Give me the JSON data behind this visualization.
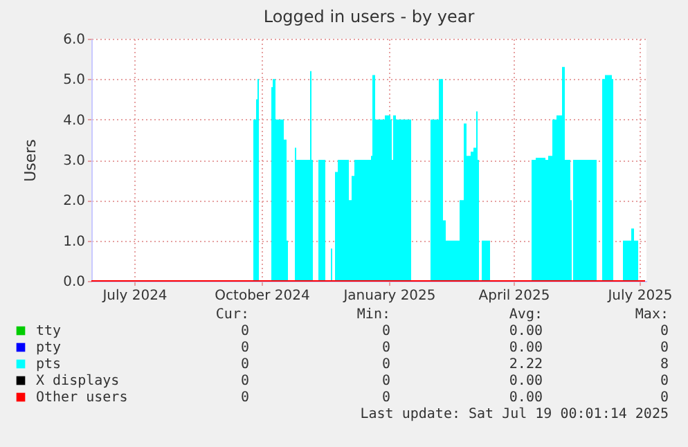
{
  "chart_data": {
    "type": "area",
    "title": "Logged in users - by year",
    "ylabel": "Users",
    "grid": true,
    "legend": "bottom",
    "xlim": [
      "2024-05-31",
      "2025-07-06"
    ],
    "xticks": [
      {
        "value": "2024-07-01",
        "label": "July 2024"
      },
      {
        "value": "2024-10-01",
        "label": "October 2024"
      },
      {
        "value": "2025-01-01",
        "label": "January 2025"
      },
      {
        "value": "2025-04-01",
        "label": "April 2025"
      },
      {
        "value": "2025-07-01",
        "label": "July 2025"
      }
    ],
    "ylim": [
      0,
      6
    ],
    "yticks": [
      {
        "value": 0,
        "label": "0.0"
      },
      {
        "value": 1,
        "label": "1.0"
      },
      {
        "value": 2,
        "label": "2.0"
      },
      {
        "value": 3,
        "label": "3.0"
      },
      {
        "value": 4,
        "label": "4.0"
      },
      {
        "value": 5,
        "label": "5.0"
      },
      {
        "value": 6,
        "label": "6.0"
      }
    ],
    "series": [
      {
        "name": "tty",
        "type": "line",
        "color": "#00cc00"
      },
      {
        "name": "pty",
        "type": "line",
        "color": "#0000ff"
      },
      {
        "name": "pts",
        "color": "#00ffff",
        "x": [
          "2024-05-31",
          "2024-09-24",
          "2024-09-25",
          "2024-09-27",
          "2024-09-28",
          "2024-09-29",
          "2024-10-07",
          "2024-10-08",
          "2024-10-09",
          "2024-10-11",
          "2024-10-15",
          "2024-10-17",
          "2024-10-19",
          "2024-10-20",
          "2024-10-24",
          "2024-10-25",
          "2024-10-26",
          "2024-11-03",
          "2024-11-05",
          "2024-11-06",
          "2024-11-07",
          "2024-11-10",
          "2024-11-11",
          "2024-11-15",
          "2024-11-16",
          "2024-11-19",
          "2024-11-20",
          "2024-11-21",
          "2024-11-22",
          "2024-11-23",
          "2024-11-25",
          "2024-11-30",
          "2024-12-03",
          "2024-12-05",
          "2024-12-07",
          "2024-12-17",
          "2024-12-19",
          "2024-12-20",
          "2024-12-22",
          "2024-12-29",
          "2025-01-02",
          "2025-01-03",
          "2025-01-04",
          "2025-01-06",
          "2025-01-16",
          "2025-01-17",
          "2025-01-30",
          "2025-01-31",
          "2025-02-04",
          "2025-02-06",
          "2025-02-09",
          "2025-02-11",
          "2025-02-19",
          "2025-02-21",
          "2025-02-24",
          "2025-02-26",
          "2025-03-01",
          "2025-03-03",
          "2025-03-05",
          "2025-03-06",
          "2025-03-07",
          "2025-03-09",
          "2025-03-14",
          "2025-03-15",
          "2025-04-13",
          "2025-04-14",
          "2025-04-17",
          "2025-04-24",
          "2025-04-26",
          "2025-04-29",
          "2025-05-02",
          "2025-05-06",
          "2025-05-08",
          "2025-05-11",
          "2025-05-12",
          "2025-05-13",
          "2025-05-14",
          "2025-05-30",
          "2025-05-31",
          "2025-06-03",
          "2025-06-04",
          "2025-06-06",
          "2025-06-11",
          "2025-06-12",
          "2025-06-18",
          "2025-06-19",
          "2025-06-23",
          "2025-06-25",
          "2025-06-27",
          "2025-06-29",
          "2025-06-30",
          "2025-07-05"
        ],
        "values": [
          0,
          0,
          4,
          4.5,
          5,
          0,
          0,
          4.8,
          5,
          4,
          4,
          3.5,
          1,
          0,
          0,
          3.3,
          3,
          3,
          5.2,
          3,
          0,
          0,
          3,
          3,
          0,
          0,
          0.8,
          0,
          0,
          2.7,
          3,
          3,
          2,
          2.6,
          3,
          3,
          3.1,
          5.1,
          4,
          4.1,
          4,
          3,
          4.1,
          4,
          4,
          0,
          0,
          4,
          4,
          5,
          1.5,
          1,
          1,
          2,
          3.9,
          3.1,
          3.2,
          3.3,
          4.2,
          3,
          0,
          1,
          1,
          0,
          0,
          3,
          3.05,
          3,
          3.1,
          4,
          4.1,
          5.3,
          3,
          3,
          2,
          0,
          3,
          3,
          0,
          0,
          5,
          5.1,
          5,
          0,
          0,
          1,
          1,
          1.3,
          1,
          1,
          0,
          0
        ]
      },
      {
        "name": "X displays",
        "type": "line",
        "color": "#000000"
      },
      {
        "name": "Other users",
        "type": "line",
        "color": "#ff0000",
        "x": [
          "2024-05-31",
          "2025-07-05"
        ],
        "values": [
          0,
          0
        ]
      }
    ],
    "annotations": [
      "Cur:",
      "Min:",
      "Avg:",
      "Max:",
      "0",
      "0",
      "0.00",
      "0",
      "0",
      "0",
      "0.00",
      "0",
      "0",
      "0",
      "2.22",
      "8",
      "0",
      "0",
      "0.00",
      "0",
      "0",
      "0",
      "0.00",
      "0",
      "Last update: Sat Jul 19 00:01:14 2025"
    ]
  }
}
